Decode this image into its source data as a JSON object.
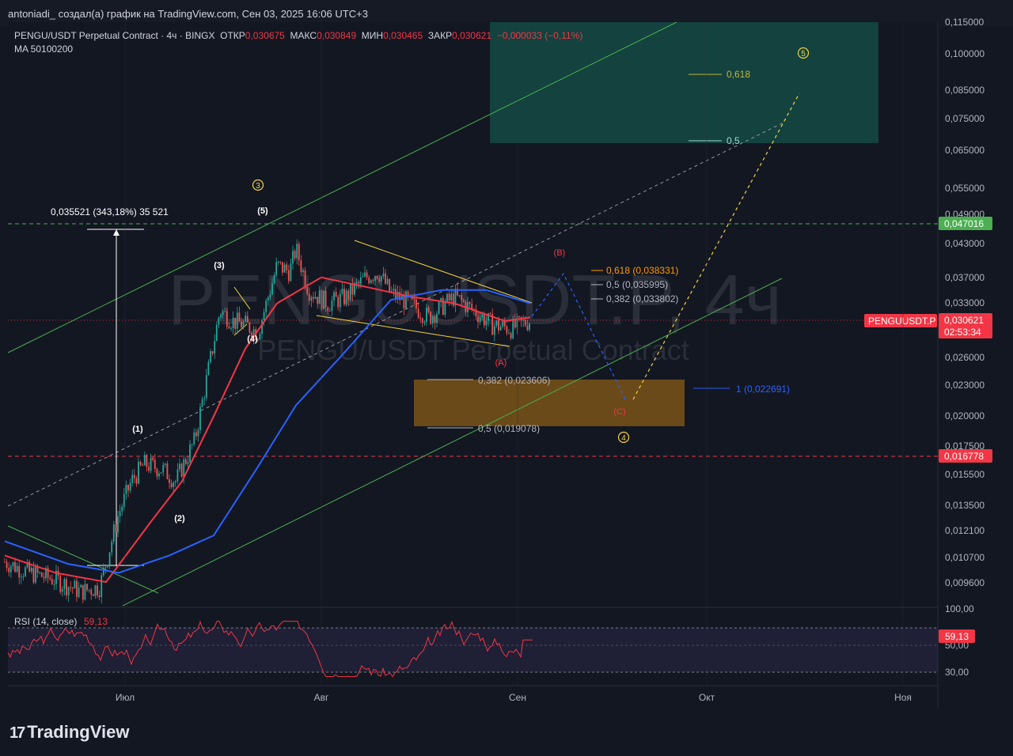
{
  "header": {
    "attribution": "antoniadi_ создал(а) график на TradingView.com, Сен 03, 2025 16:06 UTC+3"
  },
  "legend": {
    "symbol": "PENGU/USDT Perpetual Contract · 4ч · BINGX",
    "open_label": "ОТКР",
    "open": "0,030675",
    "high_label": "МАКС",
    "high": "0,030849",
    "low_label": "МИН",
    "low": "0,030465",
    "close_label": "ЗАКР",
    "close": "0,030621",
    "change": "−0,000033 (−0,11%)",
    "ma": "MA 50100200"
  },
  "watermark": {
    "line1": "PENGUUSDT.P, 4ч",
    "line2": "PENGU/USDT Perpetual Contract"
  },
  "price_axis": [
    "0,115000",
    "0,100000",
    "0,085000",
    "0,075000",
    "0,065000",
    "0,055000",
    "0,049000",
    "0,043000",
    "0,037000",
    "0,033000",
    "0,026000",
    "0,023000",
    "0,020000",
    "0,017500",
    "0,015500",
    "0,013500",
    "0,012100",
    "0,010700",
    "0,009600"
  ],
  "price_badges": {
    "level_high": "0,047016",
    "level_low": "0,016778",
    "symbol_tag": "PENGUUSDT.P",
    "last_price": "0,030621",
    "countdown": "02:53:34"
  },
  "time_axis": [
    "Июл",
    "Авг",
    "Сен",
    "Окт",
    "Ноя"
  ],
  "rsi": {
    "label": "RSI (14, close)",
    "value": "59,13",
    "axis": [
      "100,00",
      "50,00",
      "30,00"
    ]
  },
  "annotations": {
    "measure": "0,035521 (343,18%) 35 521",
    "wave_major_3": "3",
    "wave_major_4": "4",
    "wave_major_5": "5",
    "wave_5": "(5)",
    "wave_3": "(3)",
    "wave_4": "(4)",
    "wave_1": "(1)",
    "wave_2": "(2)",
    "wave_A": "(A)",
    "wave_B": "(B)",
    "wave_C": "(C)",
    "fib_b_618": "0,618 (0,038331)",
    "fib_b_5": "0,5 (0,035995)",
    "fib_b_382": "0,382 (0,033802)",
    "fib_c_382": "0,382 (0,023606)",
    "fib_c_5": "0,5 (0,019078)",
    "fib_c_1": "1 (0,022691)",
    "tgt_618": "0,618",
    "tgt_5": "0,5"
  },
  "brand": {
    "name": "TradingView"
  },
  "chart_data": {
    "type": "line",
    "symbol": "PENGU/USDT Perpetual Contract",
    "timeframe": "4ч",
    "y_scale": "log",
    "x_ticks": [
      "Июл",
      "Авг",
      "Сен",
      "Окт",
      "Ноя"
    ],
    "series": [
      {
        "name": "PENGU/USDT Perpetual Contract",
        "points": [
          [
            "Jun-12",
            0.0105
          ],
          [
            "Jun-16",
            0.01
          ],
          [
            "Jun-20",
            0.0097
          ],
          [
            "Jun-24",
            0.0092
          ],
          [
            "Jun-27",
            0.0094
          ],
          [
            "Jun-30",
            0.013
          ],
          [
            "Jul-02",
            0.015
          ],
          [
            "Jul-04",
            0.0162
          ],
          [
            "Jul-07",
            0.0158
          ],
          [
            "Jul-09",
            0.015
          ],
          [
            "Jul-12",
            0.018
          ],
          [
            "Jul-14",
            0.024
          ],
          [
            "Jul-16",
            0.032
          ],
          [
            "Jul-18",
            0.0305
          ],
          [
            "Jul-20",
            0.03
          ],
          [
            "Jul-22",
            0.029
          ],
          [
            "Jul-25",
            0.039
          ],
          [
            "Jul-27",
            0.038
          ],
          [
            "Jul-28",
            0.042
          ],
          [
            "Jul-30",
            0.035
          ],
          [
            "Aug-02",
            0.033
          ],
          [
            "Aug-05",
            0.034
          ],
          [
            "Aug-08",
            0.037
          ],
          [
            "Aug-10",
            0.038
          ],
          [
            "Aug-12",
            0.0345
          ],
          [
            "Aug-15",
            0.033
          ],
          [
            "Aug-18",
            0.031
          ],
          [
            "Aug-22",
            0.034
          ],
          [
            "Aug-25",
            0.032
          ],
          [
            "Aug-28",
            0.03
          ],
          [
            "Aug-31",
            0.0295
          ],
          [
            "Sep-03",
            0.0306
          ]
        ]
      },
      {
        "name": "MA",
        "points": [
          [
            "Jun-12",
            0.0108
          ],
          [
            "Jun-20",
            0.01
          ],
          [
            "Jun-28",
            0.0096
          ],
          [
            "Jul-05",
            0.0125
          ],
          [
            "Jul-10",
            0.015
          ],
          [
            "Jul-15",
            0.02
          ],
          [
            "Jul-20",
            0.027
          ],
          [
            "Jul-25",
            0.033
          ],
          [
            "Aug-01",
            0.037
          ],
          [
            "Aug-08",
            0.0355
          ],
          [
            "Aug-15",
            0.034
          ],
          [
            "Aug-22",
            0.033
          ],
          [
            "Aug-30",
            0.0305
          ],
          [
            "Sep-03",
            0.031
          ]
        ]
      },
      {
        "name": "MA",
        "points": [
          [
            "Jun-12",
            0.0115
          ],
          [
            "Jun-22",
            0.0104
          ],
          [
            "Jun-30",
            0.01
          ],
          [
            "Jul-08",
            0.0108
          ],
          [
            "Jul-15",
            0.0118
          ],
          [
            "Jul-22",
            0.016
          ],
          [
            "Jul-28",
            0.021
          ],
          [
            "Aug-04",
            0.026
          ],
          [
            "Aug-12",
            0.0335
          ],
          [
            "Aug-20",
            0.035
          ],
          [
            "Aug-27",
            0.035
          ],
          [
            "Sep-03",
            0.033
          ]
        ]
      }
    ],
    "levels": [
      {
        "label": "0,047016",
        "value": 0.047016,
        "style": "dashed",
        "color": "#4caf50"
      },
      {
        "label": "0,016778",
        "value": 0.016778,
        "style": "dashed",
        "color": "#f23645"
      }
    ],
    "fib_b": [
      0.038331,
      0.035995,
      0.033802
    ],
    "fib_c": [
      0.023606,
      0.019078,
      0.022691
    ],
    "target_zone": [
      0.0675,
      0.115
    ],
    "support_zone": [
      0.019078,
      0.0235
    ],
    "rsi": {
      "period": 14,
      "last": 59.13,
      "ylim": [
        30,
        100
      ]
    },
    "ylim": [
      0.0088,
      0.115
    ]
  }
}
